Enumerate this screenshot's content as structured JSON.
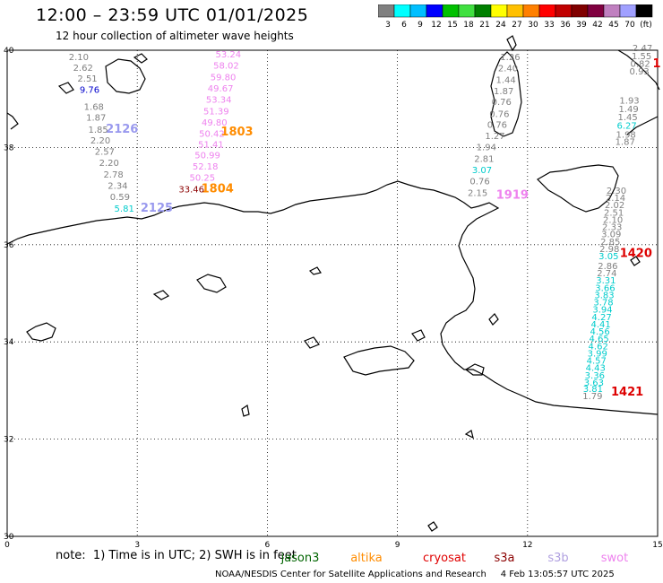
{
  "title": "12:00 – 23:59 UTC 01/01/2025",
  "subtitle": "12 hour collection of altimeter wave heights",
  "note": "note:  1) Time is in UTC; 2) SWH is in feet",
  "credit": "NOAA/NESDIS Center for Satellite Applications and Research     4 Feb 13:05:57 UTC 2025",
  "colorbar": {
    "colors": [
      "#808080",
      "#00ffff",
      "#00bfff",
      "#0000ff",
      "#00c000",
      "#40e040",
      "#008000",
      "#ffff00",
      "#ffc000",
      "#ff8000",
      "#ff0000",
      "#c00000",
      "#800000",
      "#800040",
      "#c080c0",
      "#a0a0ff",
      "#000000"
    ],
    "labels": [
      "3",
      "6",
      "9",
      "12",
      "15",
      "18",
      "21",
      "24",
      "27",
      "30",
      "33",
      "36",
      "39",
      "42",
      "45",
      "70",
      "(ft)"
    ]
  },
  "axes": {
    "x_ticks": [
      "0",
      "3",
      "6",
      "9",
      "12",
      "15"
    ],
    "y_ticks": [
      "40",
      "38",
      "36",
      "34",
      "32",
      "30"
    ]
  },
  "legend": [
    {
      "name": "jason3",
      "color": "#006400"
    },
    {
      "name": "altika",
      "color": "#ff8c00"
    },
    {
      "name": "cryosat",
      "color": "#e00000"
    },
    {
      "name": "s3a",
      "color": "#8b0000"
    },
    {
      "name": "s3b",
      "color": "#b0a0e0"
    },
    {
      "name": "swot",
      "color": "#ee82ee"
    }
  ],
  "track_labels": [
    {
      "text": "2126",
      "lon": 2.65,
      "lat": 38.3,
      "color": "#9999ee"
    },
    {
      "text": "2125",
      "lon": 3.45,
      "lat": 36.68,
      "color": "#9999ee"
    },
    {
      "text": "1803",
      "lon": 5.3,
      "lat": 38.25,
      "color": "#ff8c00"
    },
    {
      "text": "1804",
      "lon": 4.85,
      "lat": 37.08,
      "color": "#ff8c00"
    },
    {
      "text": "1919",
      "lon": 11.65,
      "lat": 36.95,
      "color": "#ee82ee"
    },
    {
      "text": "1420",
      "lon": 14.5,
      "lat": 35.75,
      "color": "#dd0000"
    },
    {
      "text": "1421",
      "lon": 14.3,
      "lat": 32.9,
      "color": "#dd0000"
    },
    {
      "text": "1",
      "lon": 14.98,
      "lat": 39.65,
      "color": "#dd0000"
    }
  ],
  "wave_heights": [
    {
      "text": "2.10",
      "lon": 1.65,
      "lat": 39.8,
      "color": "#808080"
    },
    {
      "text": "2.62",
      "lon": 1.75,
      "lat": 39.58,
      "color": "#808080"
    },
    {
      "text": "2.51",
      "lon": 1.85,
      "lat": 39.35,
      "color": "#808080"
    },
    {
      "text": "9.76",
      "lon": 1.9,
      "lat": 39.12,
      "color": "#0000cc"
    },
    {
      "text": "1.68",
      "lon": 2.0,
      "lat": 38.77,
      "color": "#808080"
    },
    {
      "text": "1.87",
      "lon": 2.05,
      "lat": 38.55,
      "color": "#808080"
    },
    {
      "text": "1.85",
      "lon": 2.1,
      "lat": 38.3,
      "color": "#808080"
    },
    {
      "text": "2.20",
      "lon": 2.15,
      "lat": 38.08,
      "color": "#808080"
    },
    {
      "text": "2.57",
      "lon": 2.25,
      "lat": 37.85,
      "color": "#808080"
    },
    {
      "text": "2.20",
      "lon": 2.35,
      "lat": 37.62,
      "color": "#808080"
    },
    {
      "text": "2.78",
      "lon": 2.45,
      "lat": 37.38,
      "color": "#808080"
    },
    {
      "text": "2.34",
      "lon": 2.55,
      "lat": 37.15,
      "color": "#808080"
    },
    {
      "text": "0.59",
      "lon": 2.6,
      "lat": 36.92,
      "color": "#808080"
    },
    {
      "text": "5.81",
      "lon": 2.7,
      "lat": 36.68,
      "color": "#00cccc"
    },
    {
      "text": "53.24",
      "lon": 5.1,
      "lat": 39.85,
      "color": "#ee82ee"
    },
    {
      "text": "58.02",
      "lon": 5.05,
      "lat": 39.62,
      "color": "#ee82ee"
    },
    {
      "text": "59.80",
      "lon": 4.98,
      "lat": 39.38,
      "color": "#ee82ee"
    },
    {
      "text": "49.67",
      "lon": 4.92,
      "lat": 39.15,
      "color": "#ee82ee"
    },
    {
      "text": "53.34",
      "lon": 4.88,
      "lat": 38.92,
      "color": "#ee82ee"
    },
    {
      "text": "51.39",
      "lon": 4.82,
      "lat": 38.68,
      "color": "#ee82ee"
    },
    {
      "text": "49.80",
      "lon": 4.78,
      "lat": 38.45,
      "color": "#ee82ee"
    },
    {
      "text": "50.42",
      "lon": 4.72,
      "lat": 38.22,
      "color": "#ee82ee"
    },
    {
      "text": "51.41",
      "lon": 4.7,
      "lat": 38.0,
      "color": "#ee82ee"
    },
    {
      "text": "50.99",
      "lon": 4.62,
      "lat": 37.78,
      "color": "#ee82ee"
    },
    {
      "text": "52.18",
      "lon": 4.57,
      "lat": 37.55,
      "color": "#ee82ee"
    },
    {
      "text": "50.25",
      "lon": 4.5,
      "lat": 37.32,
      "color": "#ee82ee"
    },
    {
      "text": "33.46",
      "lon": 4.25,
      "lat": 37.08,
      "color": "#8b0000"
    },
    {
      "text": "1.26",
      "lon": 11.6,
      "lat": 39.8,
      "color": "#808080"
    },
    {
      "text": "2.40",
      "lon": 11.55,
      "lat": 39.57,
      "color": "#808080"
    },
    {
      "text": "1.44",
      "lon": 11.5,
      "lat": 39.33,
      "color": "#808080"
    },
    {
      "text": "1.87",
      "lon": 11.45,
      "lat": 39.1,
      "color": "#808080"
    },
    {
      "text": "0.76",
      "lon": 11.4,
      "lat": 38.87,
      "color": "#808080"
    },
    {
      "text": "0.76",
      "lon": 11.35,
      "lat": 38.63,
      "color": "#808080"
    },
    {
      "text": "0.76",
      "lon": 11.3,
      "lat": 38.4,
      "color": "#808080"
    },
    {
      "text": "1.27",
      "lon": 11.25,
      "lat": 38.17,
      "color": "#808080"
    },
    {
      "text": "1.94",
      "lon": 11.05,
      "lat": 37.94,
      "color": "#808080"
    },
    {
      "text": "2.81",
      "lon": 11.0,
      "lat": 37.7,
      "color": "#808080"
    },
    {
      "text": "3.07",
      "lon": 10.95,
      "lat": 37.47,
      "color": "#00cccc"
    },
    {
      "text": "0.76",
      "lon": 10.9,
      "lat": 37.24,
      "color": "#808080"
    },
    {
      "text": "2.15",
      "lon": 10.85,
      "lat": 37.0,
      "color": "#808080"
    },
    {
      "text": "2.47",
      "lon": 14.65,
      "lat": 39.98,
      "color": "#808080"
    },
    {
      "text": "1.55",
      "lon": 14.63,
      "lat": 39.82,
      "color": "#808080"
    },
    {
      "text": "0.82",
      "lon": 14.6,
      "lat": 39.66,
      "color": "#808080"
    },
    {
      "text": "0.93",
      "lon": 14.58,
      "lat": 39.5,
      "color": "#808080"
    },
    {
      "text": "1.93",
      "lon": 14.35,
      "lat": 38.9,
      "color": "#808080"
    },
    {
      "text": "1.49",
      "lon": 14.33,
      "lat": 38.73,
      "color": "#808080"
    },
    {
      "text": "1.45",
      "lon": 14.31,
      "lat": 38.56,
      "color": "#808080"
    },
    {
      "text": "6.27",
      "lon": 14.29,
      "lat": 38.39,
      "color": "#00cccc"
    },
    {
      "text": "1.98",
      "lon": 14.27,
      "lat": 38.2,
      "color": "#808080"
    },
    {
      "text": "1.87",
      "lon": 14.25,
      "lat": 38.05,
      "color": "#808080"
    },
    {
      "text": "2.30",
      "lon": 14.05,
      "lat": 37.05,
      "color": "#808080"
    },
    {
      "text": "2.14",
      "lon": 14.03,
      "lat": 36.9,
      "color": "#808080"
    },
    {
      "text": "2.02",
      "lon": 14.01,
      "lat": 36.75,
      "color": "#808080"
    },
    {
      "text": "2.51",
      "lon": 13.99,
      "lat": 36.6,
      "color": "#808080"
    },
    {
      "text": "2.10",
      "lon": 13.97,
      "lat": 36.45,
      "color": "#808080"
    },
    {
      "text": "2.33",
      "lon": 13.95,
      "lat": 36.3,
      "color": "#808080"
    },
    {
      "text": "3.09",
      "lon": 13.93,
      "lat": 36.15,
      "color": "#808080"
    },
    {
      "text": "2.85",
      "lon": 13.91,
      "lat": 36.0,
      "color": "#808080"
    },
    {
      "text": "2.98",
      "lon": 13.89,
      "lat": 35.85,
      "color": "#808080"
    },
    {
      "text": "3.05",
      "lon": 13.87,
      "lat": 35.7,
      "color": "#00cccc"
    },
    {
      "text": "2.86",
      "lon": 13.85,
      "lat": 35.5,
      "color": "#808080"
    },
    {
      "text": "2.74",
      "lon": 13.83,
      "lat": 35.35,
      "color": "#808080"
    },
    {
      "text": "3.31",
      "lon": 13.81,
      "lat": 35.2,
      "color": "#00cccc"
    },
    {
      "text": "3.66",
      "lon": 13.79,
      "lat": 35.05,
      "color": "#00cccc"
    },
    {
      "text": "3.83",
      "lon": 13.77,
      "lat": 34.9,
      "color": "#00cccc"
    },
    {
      "text": "3.78",
      "lon": 13.75,
      "lat": 34.75,
      "color": "#00cccc"
    },
    {
      "text": "3.94",
      "lon": 13.73,
      "lat": 34.6,
      "color": "#00cccc"
    },
    {
      "text": "4.27",
      "lon": 13.71,
      "lat": 34.45,
      "color": "#00cccc"
    },
    {
      "text": "4.41",
      "lon": 13.69,
      "lat": 34.3,
      "color": "#00cccc"
    },
    {
      "text": "4.56",
      "lon": 13.67,
      "lat": 34.15,
      "color": "#00cccc"
    },
    {
      "text": "4.65",
      "lon": 13.65,
      "lat": 34.0,
      "color": "#00cccc"
    },
    {
      "text": "4.62",
      "lon": 13.63,
      "lat": 33.85,
      "color": "#00cccc"
    },
    {
      "text": "3.99",
      "lon": 13.61,
      "lat": 33.7,
      "color": "#00cccc"
    },
    {
      "text": "4.57",
      "lon": 13.59,
      "lat": 33.55,
      "color": "#00cccc"
    },
    {
      "text": "4.43",
      "lon": 13.57,
      "lat": 33.4,
      "color": "#00cccc"
    },
    {
      "text": "3.36",
      "lon": 13.55,
      "lat": 33.25,
      "color": "#00cccc"
    },
    {
      "text": "3.63",
      "lon": 13.53,
      "lat": 33.1,
      "color": "#00cccc"
    },
    {
      "text": "3.81",
      "lon": 13.51,
      "lat": 32.97,
      "color": "#00cccc"
    },
    {
      "text": "1.79",
      "lon": 13.5,
      "lat": 32.82,
      "color": "#808080"
    }
  ]
}
